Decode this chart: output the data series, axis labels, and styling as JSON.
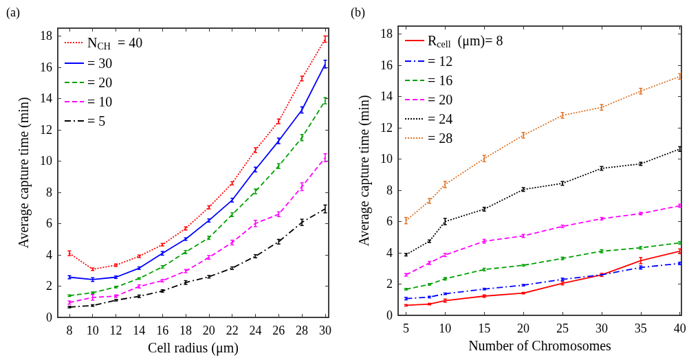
{
  "chart_data": [
    {
      "type": "line",
      "title": "(a)",
      "xlabel": "Cell radius (μm)",
      "ylabel": "Average capture time (min)",
      "x": [
        8,
        10,
        12,
        14,
        16,
        18,
        20,
        22,
        24,
        26,
        28,
        30
      ],
      "xlim": [
        7,
        30.3
      ],
      "xticks": [
        8,
        10,
        12,
        14,
        16,
        18,
        20,
        22,
        24,
        26,
        28,
        30
      ],
      "ylim": [
        0,
        18.5
      ],
      "yticks": [
        0,
        2,
        4,
        6,
        8,
        10,
        12,
        14,
        16,
        18
      ],
      "legend": "top left",
      "marker": "none",
      "grid": false,
      "series": [
        {
          "name": "N$_{CH}$  = 40",
          "color": "#ff0000",
          "line_style": "dotted",
          "values": [
            4.1,
            3.08,
            3.34,
            3.91,
            4.65,
            5.69,
            7.04,
            8.58,
            10.7,
            12.54,
            15.28,
            17.8
          ],
          "errors": [
            0.15,
            0.08,
            0.08,
            0.08,
            0.08,
            0.1,
            0.1,
            0.1,
            0.15,
            0.15,
            0.15,
            0.2
          ]
        },
        {
          "name": "= 30",
          "color": "#0000ff",
          "line_style": "solid",
          "values": [
            2.57,
            2.42,
            2.57,
            3.15,
            4.1,
            5.01,
            6.2,
            7.5,
            9.46,
            11.29,
            13.27,
            16.2
          ],
          "errors": [
            0.1,
            0.12,
            0.08,
            0.08,
            0.12,
            0.08,
            0.1,
            0.12,
            0.15,
            0.18,
            0.2,
            0.25
          ]
        },
        {
          "name": "= 20",
          "color": "#00a000",
          "line_style": "dashed",
          "values": [
            1.39,
            1.58,
            1.94,
            2.49,
            3.23,
            4.18,
            5.09,
            6.57,
            8.06,
            9.68,
            11.5,
            13.86
          ],
          "errors": [
            0.05,
            0.05,
            0.05,
            0.05,
            0.08,
            0.1,
            0.1,
            0.12,
            0.15,
            0.15,
            0.2,
            0.2
          ]
        },
        {
          "name": "= 10",
          "color": "#ff00ff",
          "line_style": "dashed",
          "values": [
            0.95,
            1.28,
            1.36,
            1.98,
            2.35,
            2.96,
            3.84,
            4.79,
            6.01,
            6.6,
            8.36,
            10.22
          ],
          "errors": [
            0.1,
            0.18,
            0.08,
            0.1,
            0.08,
            0.1,
            0.12,
            0.15,
            0.2,
            0.15,
            0.25,
            0.25
          ]
        },
        {
          "name": "= 5",
          "color": "#000000",
          "line_style": "dashdot",
          "values": [
            0.66,
            0.76,
            1.1,
            1.35,
            1.69,
            2.23,
            2.6,
            3.15,
            3.91,
            4.84,
            6.08,
            6.94
          ],
          "errors": [
            0.05,
            0.05,
            0.05,
            0.08,
            0.08,
            0.12,
            0.08,
            0.08,
            0.1,
            0.15,
            0.2,
            0.25
          ]
        }
      ]
    },
    {
      "type": "line",
      "title": "(b)",
      "xlabel": "Number of Chromosomes",
      "ylabel": "Average capture time (min)",
      "x": [
        5,
        8,
        10,
        15,
        20,
        25,
        30,
        35,
        40
      ],
      "xlim": [
        4,
        40.2
      ],
      "xticks": [
        5,
        10,
        15,
        20,
        25,
        30,
        35,
        40
      ],
      "ylim": [
        0,
        18.5
      ],
      "yticks": [
        0,
        2,
        4,
        6,
        8,
        10,
        12,
        14,
        16,
        18
      ],
      "legend": "top left",
      "marker": "none",
      "grid": false,
      "series": [
        {
          "name": "R$_{cell}$  (μm)= 8",
          "color": "#ff0000",
          "line_style": "solid",
          "values": [
            0.64,
            0.72,
            0.94,
            1.23,
            1.42,
            2.05,
            2.59,
            3.5,
            4.1
          ],
          "errors": [
            0.05,
            0.05,
            0.1,
            0.08,
            0.05,
            0.1,
            0.1,
            0.2,
            0.15
          ]
        },
        {
          "name": "= 12",
          "color": "#0000ff",
          "line_style": "dashdot",
          "values": [
            1.07,
            1.17,
            1.38,
            1.68,
            1.93,
            2.3,
            2.59,
            3.06,
            3.32
          ],
          "errors": [
            0.08,
            0.05,
            0.05,
            0.05,
            0.05,
            0.08,
            null,
            0.1,
            0.08
          ]
        },
        {
          "name": "= 16",
          "color": "#00a000",
          "line_style": "dashed",
          "values": [
            1.67,
            1.98,
            2.34,
            2.93,
            3.2,
            3.64,
            4.1,
            4.32,
            4.64
          ],
          "errors": [
            0.05,
            0.05,
            0.08,
            0.08,
            0.05,
            0.08,
            0.1,
            0.08,
            0.08
          ]
        },
        {
          "name": "= 20",
          "color": "#ff00ff",
          "line_style": "dashed",
          "values": [
            2.59,
            3.35,
            3.86,
            4.74,
            5.08,
            5.69,
            6.18,
            6.51,
            7.01
          ],
          "errors": [
            0.08,
            0.1,
            0.1,
            0.12,
            0.1,
            0.08,
            0.08,
            0.08,
            0.1
          ]
        },
        {
          "name": "= 24",
          "color": "#000000",
          "line_style": "dotted",
          "values": [
            3.88,
            4.74,
            6.0,
            6.79,
            8.05,
            8.44,
            9.4,
            9.69,
            10.64
          ],
          "errors": [
            0.08,
            0.08,
            0.2,
            0.12,
            0.12,
            0.12,
            0.12,
            0.1,
            0.15
          ]
        },
        {
          "name": "= 28",
          "color": "#e07020",
          "line_style": "dotted",
          "values": [
            6.06,
            7.32,
            8.37,
            10.03,
            11.52,
            12.79,
            13.3,
            14.34,
            15.28
          ],
          "errors": [
            0.2,
            0.15,
            0.2,
            0.2,
            0.18,
            0.18,
            0.18,
            0.18,
            0.18
          ]
        }
      ]
    }
  ]
}
